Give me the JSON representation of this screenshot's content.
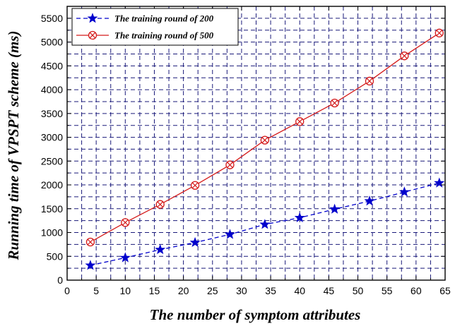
{
  "chart_data": {
    "type": "line",
    "xlabel": "The number of  symptom attributes",
    "ylabel": "Running time of VPSPT scheme (ms)",
    "xlim": [
      0,
      65
    ],
    "ylim": [
      0,
      5750
    ],
    "xticks": [
      0,
      5,
      10,
      15,
      20,
      25,
      30,
      35,
      40,
      45,
      50,
      55,
      60,
      65
    ],
    "yticks": [
      0,
      500,
      1000,
      1500,
      2000,
      2500,
      3000,
      3500,
      4000,
      4500,
      5000,
      5500
    ],
    "x": [
      4,
      10,
      16,
      22,
      28,
      34,
      40,
      46,
      52,
      58,
      64
    ],
    "grid": true,
    "legend_position": "top-left",
    "series": [
      {
        "name": "The training round of 200",
        "values": [
          310,
          470,
          640,
          790,
          960,
          1170,
          1310,
          1490,
          1660,
          1850,
          2040
        ],
        "color": "#0000cc",
        "line_style": "dashed",
        "marker": "star"
      },
      {
        "name": "The training round of 500",
        "values": [
          800,
          1210,
          1590,
          1990,
          2420,
          2940,
          3330,
          3720,
          4180,
          4710,
          5190
        ],
        "color": "#d41a1a",
        "line_style": "solid",
        "marker": "circle-x"
      }
    ]
  }
}
